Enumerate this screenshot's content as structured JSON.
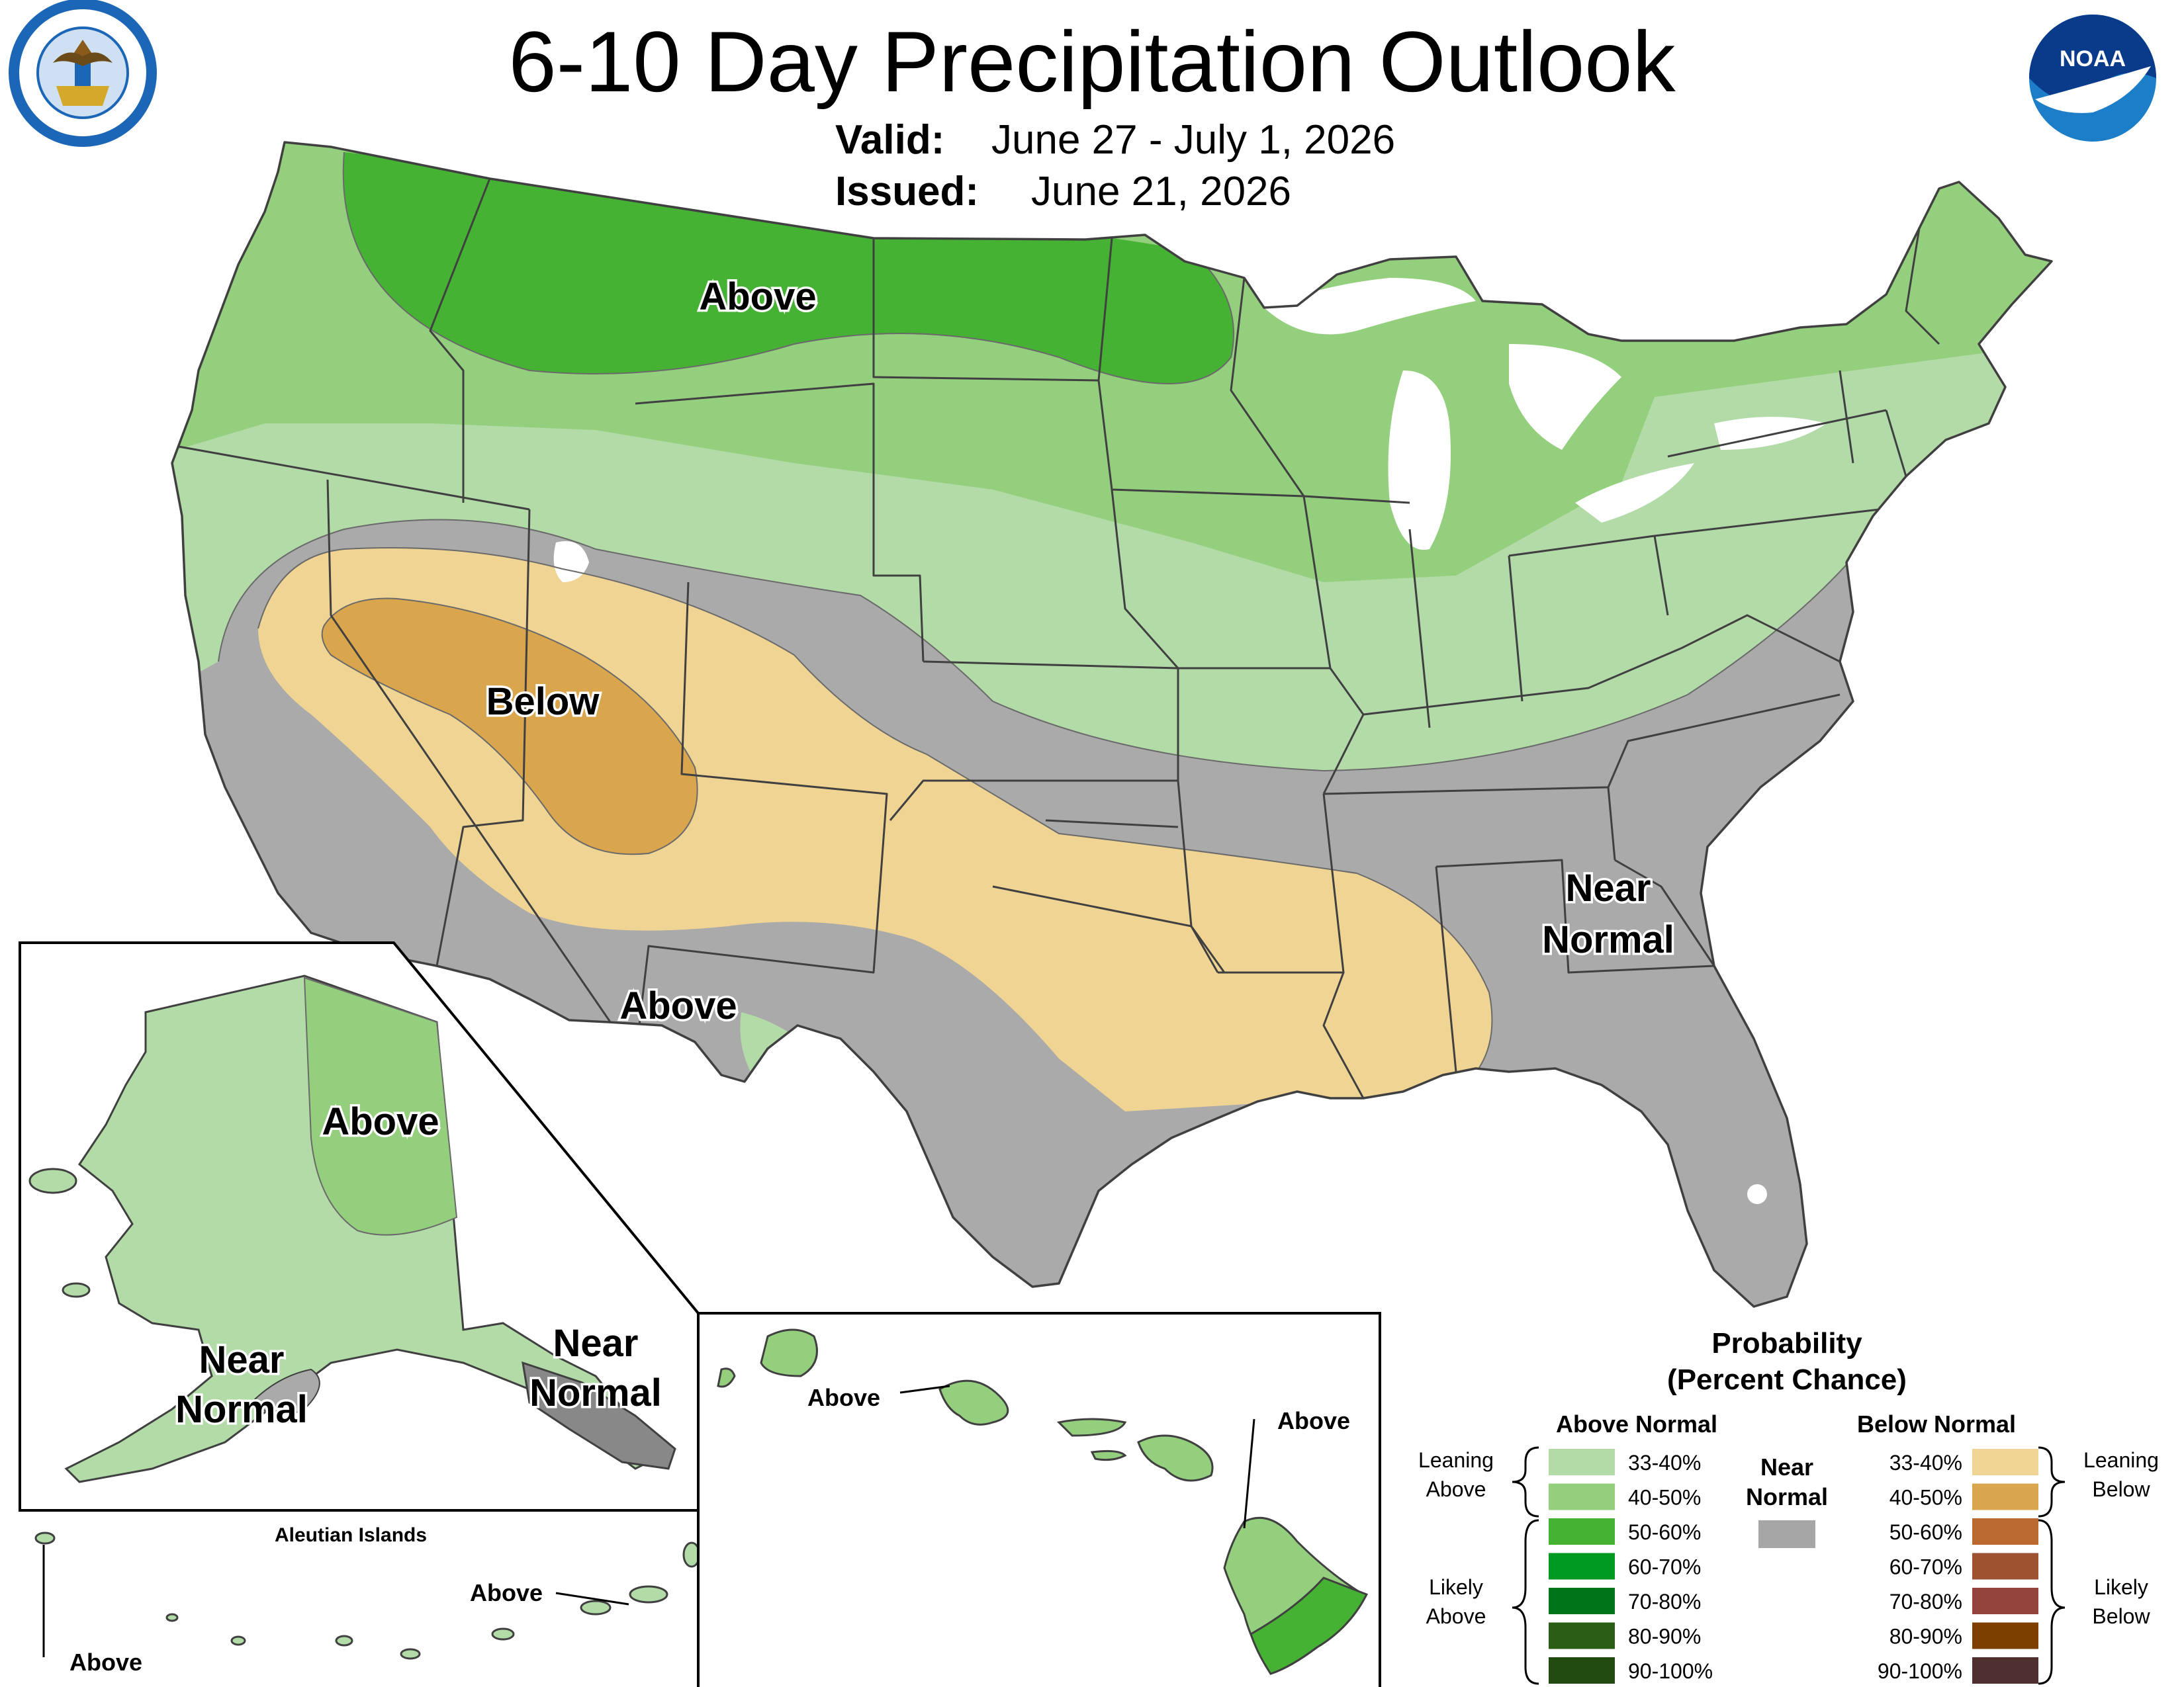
{
  "header": {
    "title": "6-10 Day Precipitation Outlook",
    "valid_label": "Valid:",
    "valid_value": "June 27 - July 1, 2026",
    "issued_label": "Issued:",
    "issued_value": "June 21, 2026"
  },
  "logos": {
    "left": {
      "icon": "department-of-commerce-seal-icon",
      "text": "DEPARTMENT OF COMMERCE · UNITED STATES OF AMERICA"
    },
    "right": {
      "icon": "noaa-logo-icon",
      "text": "NOAA"
    }
  },
  "colors": {
    "above_33_40": "#b3dba8",
    "above_40_50": "#94cf7e",
    "above_50_60": "#45b233",
    "above_60_70": "#009a22",
    "above_70_80": "#007419",
    "above_80_90": "#2c5d14",
    "above_90_100": "#224b10",
    "near_normal": "#a6a6a6",
    "below_33_40": "#f0d493",
    "below_40_50": "#d9a54d",
    "below_50_60": "#bb6a2f",
    "below_60_70": "#9d5230",
    "below_70_80": "#93443c",
    "below_80_90": "#7c3f00",
    "below_90_100": "#4f2f2f",
    "near_normal_map": "#aaaaaa",
    "water": "#ffffff"
  },
  "map_labels": {
    "conus_above_north": "Above",
    "conus_below": "Below",
    "conus_above_south": "Above",
    "conus_near_normal_1": "Near",
    "conus_near_normal_2": "Normal",
    "alaska_above": "Above",
    "alaska_near_sw_1": "Near",
    "alaska_near_sw_2": "Normal",
    "alaska_near_se_1": "Near",
    "alaska_near_se_2": "Normal",
    "aleutian_title": "Aleutian Islands",
    "aleutian_above_east": "Above",
    "aleutian_above_west": "Above",
    "hawaii_above_west": "Above",
    "hawaii_above_east": "Above"
  },
  "legend": {
    "title_1": "Probability",
    "title_2": "(Percent Chance)",
    "above_heading": "Above Normal",
    "below_heading": "Below Normal",
    "near_heading_1": "Near",
    "near_heading_2": "Normal",
    "leaning_above_1": "Leaning",
    "leaning_above_2": "Above",
    "likely_above_1": "Likely",
    "likely_above_2": "Above",
    "leaning_below_1": "Leaning",
    "leaning_below_2": "Below",
    "likely_below_1": "Likely",
    "likely_below_2": "Below",
    "above_rows": [
      {
        "label": "33-40%",
        "color": "#b3dba8"
      },
      {
        "label": "40-50%",
        "color": "#94cf7e"
      },
      {
        "label": "50-60%",
        "color": "#45b233"
      },
      {
        "label": "60-70%",
        "color": "#009a22"
      },
      {
        "label": "70-80%",
        "color": "#007419"
      },
      {
        "label": "80-90%",
        "color": "#2c5d14"
      },
      {
        "label": "90-100%",
        "color": "#224b10"
      }
    ],
    "below_rows": [
      {
        "label": "33-40%",
        "color": "#f0d493"
      },
      {
        "label": "40-50%",
        "color": "#d9a54d"
      },
      {
        "label": "50-60%",
        "color": "#bb6a2f"
      },
      {
        "label": "60-70%",
        "color": "#9d5230"
      },
      {
        "label": "70-80%",
        "color": "#93443c"
      },
      {
        "label": "80-90%",
        "color": "#7c3f00"
      },
      {
        "label": "90-100%",
        "color": "#4f2f2f"
      }
    ],
    "near_color": "#a6a6a6"
  }
}
